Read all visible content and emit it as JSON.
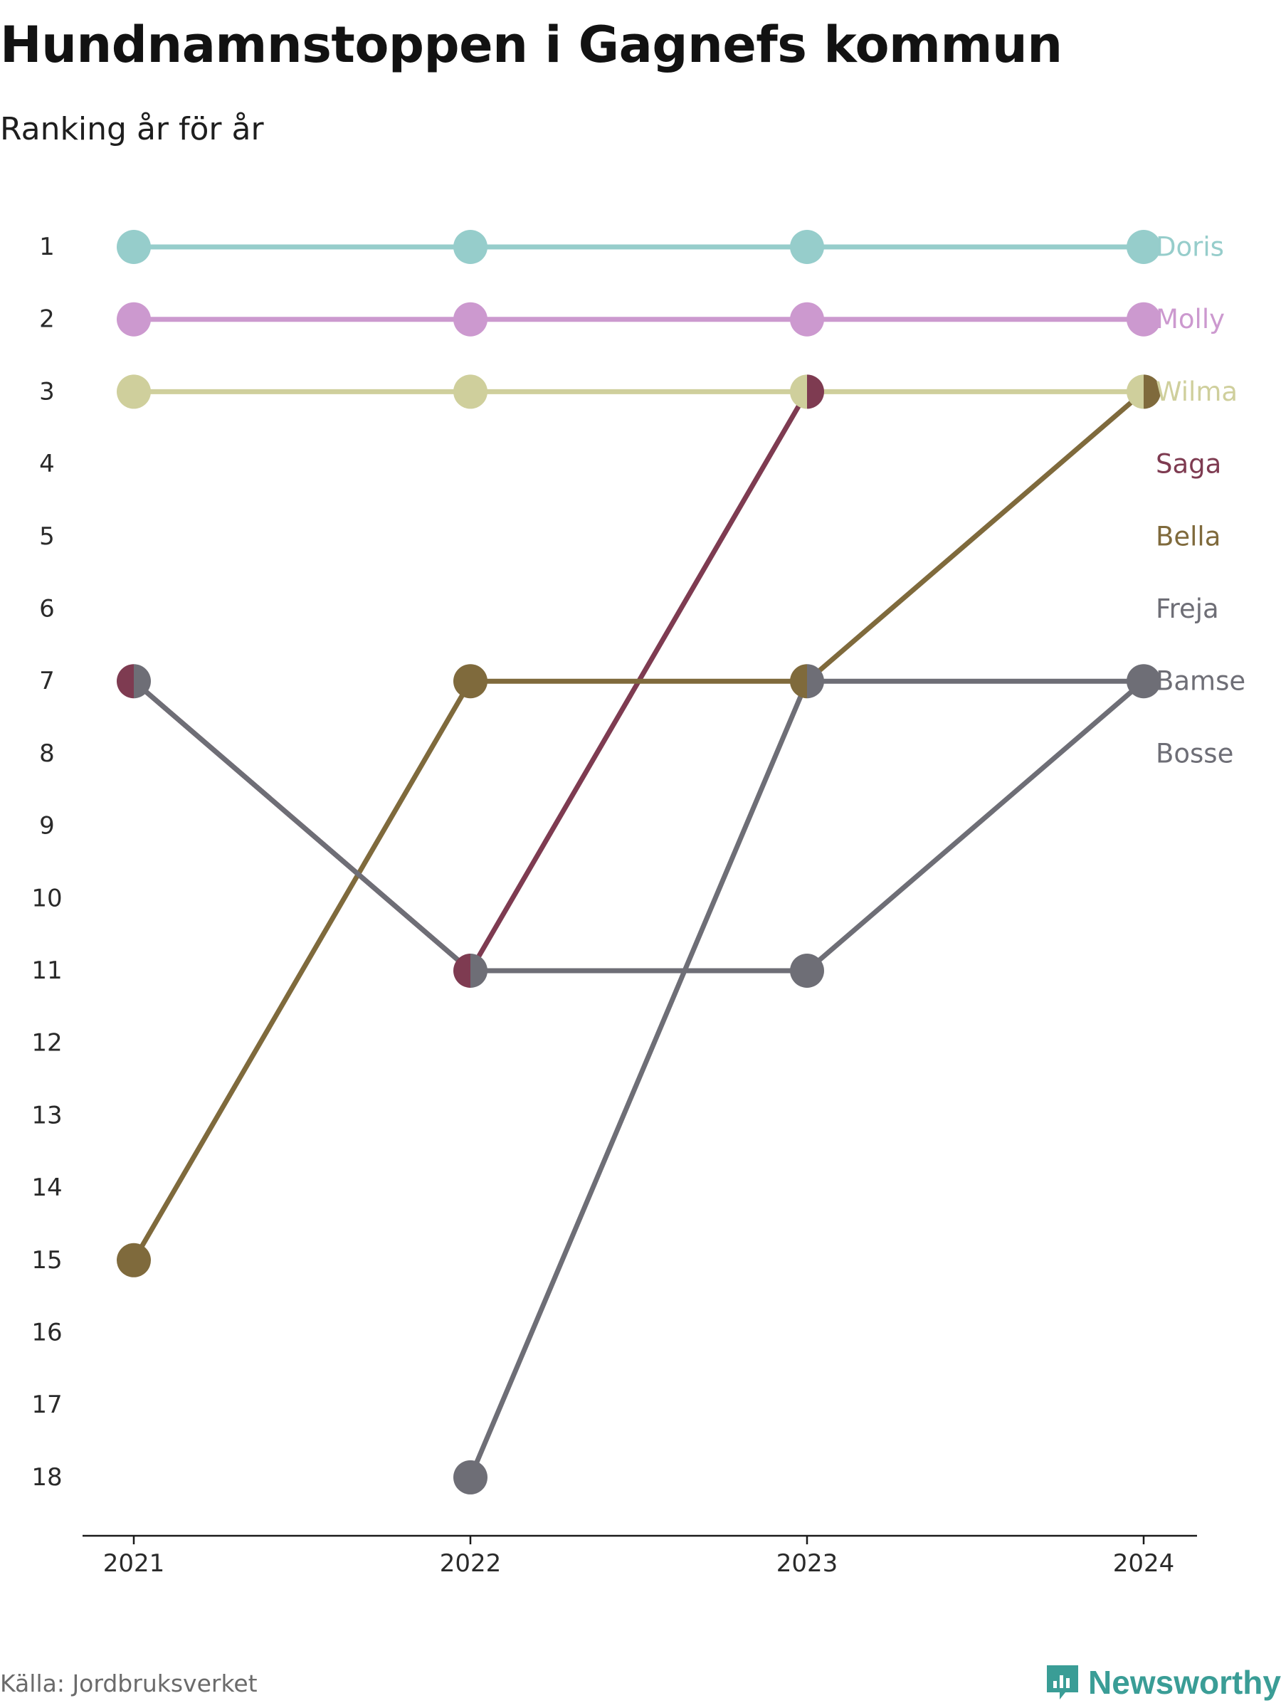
{
  "title": "Hundnamnstoppen i Gagnefs kommun",
  "subtitle": "Ranking år för år",
  "source": "Källa: Jordbruksverket",
  "brand": {
    "name": "Newsworthy",
    "icon": "newsworthy-logo-icon",
    "color": "#3a9d96"
  },
  "chart_data": {
    "type": "line",
    "x": [
      "2021",
      "2022",
      "2023",
      "2024"
    ],
    "y_ticks": [
      1,
      2,
      3,
      4,
      5,
      6,
      7,
      8,
      9,
      10,
      11,
      12,
      13,
      14,
      15,
      16,
      17,
      18
    ],
    "ylim": [
      1,
      18
    ],
    "y_reversed": true,
    "grid": false,
    "legend": "direct labels at right",
    "series": [
      {
        "name": "Doris",
        "color": "#96cdcb",
        "values": [
          1,
          1,
          1,
          1
        ]
      },
      {
        "name": "Molly",
        "color": "#cc99cf",
        "values": [
          2,
          2,
          2,
          2
        ]
      },
      {
        "name": "Wilma",
        "color": "#cfcf9c",
        "values": [
          3,
          3,
          3,
          3
        ]
      },
      {
        "name": "Saga",
        "color": "#7e3b51",
        "values": [
          7,
          11,
          3,
          null
        ]
      },
      {
        "name": "Bella",
        "color": "#7f6a3c",
        "values": [
          15,
          7,
          7,
          3
        ]
      },
      {
        "name": "Freja",
        "color": "#6e6e76",
        "values": [
          null,
          18,
          7,
          7
        ]
      },
      {
        "name": "Bamse",
        "color": "#6e6e76",
        "values": [
          7,
          11,
          11,
          7
        ]
      },
      {
        "name": "Bosse",
        "color": "#6e6e76",
        "values": [
          null,
          null,
          null,
          null
        ]
      }
    ]
  }
}
